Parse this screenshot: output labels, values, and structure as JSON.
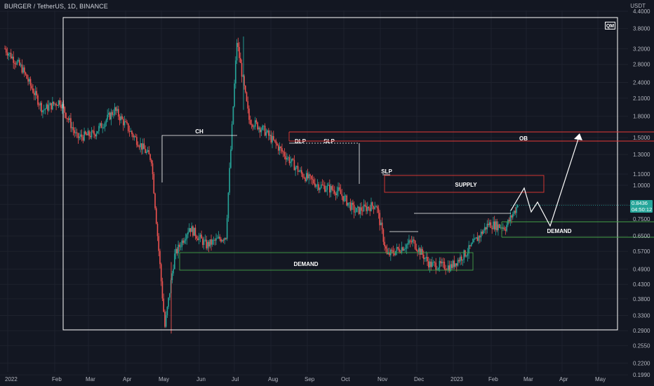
{
  "header": {
    "title": "BURGER / TetherUS, 1D, BINANCE",
    "quote_unit": "USDT"
  },
  "logo": {
    "text": "QM"
  },
  "price_tag": {
    "value": "0.8436",
    "countdown": "04:50:12"
  },
  "colors": {
    "background": "#131722",
    "up": "#26a69a",
    "down": "#ef5350",
    "white_zone": "#ffffff",
    "supply_zone": "#e53935",
    "demand_zone": "#43a047",
    "axis_text": "#b2b5be"
  },
  "chart_data": {
    "type": "candlestick",
    "title": "BURGER / TetherUS, 1D, BINANCE",
    "y_scale": "log",
    "y_ticks": [
      "4.4000",
      "3.8000",
      "3.2000",
      "2.8000",
      "2.4000",
      "2.1000",
      "1.8000",
      "1.5000",
      "1.3000",
      "1.1000",
      "1.0000",
      "0.8500",
      "0.7500",
      "0.6500",
      "0.5700",
      "0.4900",
      "0.4300",
      "0.3800",
      "0.3300",
      "0.2900",
      "0.2550",
      "0.2200",
      "0.1990"
    ],
    "x_ticks": [
      "2022",
      "Feb",
      "Mar",
      "Apr",
      "May",
      "Jun",
      "Jul",
      "Aug",
      "Sep",
      "Oct",
      "Nov",
      "Dec",
      "2023",
      "Feb",
      "Mar",
      "Apr",
      "May"
    ],
    "grid": true,
    "last_price": 0.8436,
    "ohlc_approx": [
      {
        "date": "2022-01-01",
        "close": 3.2
      },
      {
        "date": "2022-01-15",
        "close": 2.7
      },
      {
        "date": "2022-02-01",
        "close": 1.9
      },
      {
        "date": "2022-02-15",
        "close": 2.05
      },
      {
        "date": "2022-03-01",
        "close": 1.5
      },
      {
        "date": "2022-03-15",
        "close": 1.55
      },
      {
        "date": "2022-04-01",
        "close": 1.9
      },
      {
        "date": "2022-04-15",
        "close": 1.55
      },
      {
        "date": "2022-05-01",
        "close": 1.25
      },
      {
        "date": "2022-05-12",
        "close": 0.3
      },
      {
        "date": "2022-05-20",
        "close": 0.55
      },
      {
        "date": "2022-06-01",
        "close": 0.7
      },
      {
        "date": "2022-06-15",
        "close": 0.6
      },
      {
        "date": "2022-07-01",
        "close": 0.65
      },
      {
        "date": "2022-07-10",
        "close": 3.4
      },
      {
        "date": "2022-07-20",
        "close": 1.75
      },
      {
        "date": "2022-08-01",
        "close": 1.6
      },
      {
        "date": "2022-08-15",
        "close": 1.35
      },
      {
        "date": "2022-09-01",
        "close": 1.1
      },
      {
        "date": "2022-09-15",
        "close": 1.0
      },
      {
        "date": "2022-10-01",
        "close": 0.95
      },
      {
        "date": "2022-10-15",
        "close": 0.8
      },
      {
        "date": "2022-11-01",
        "close": 0.85
      },
      {
        "date": "2022-11-10",
        "close": 0.55
      },
      {
        "date": "2022-12-01",
        "close": 0.62
      },
      {
        "date": "2022-12-15",
        "close": 0.51
      },
      {
        "date": "2023-01-01",
        "close": 0.5
      },
      {
        "date": "2023-01-15",
        "close": 0.57
      },
      {
        "date": "2023-02-01",
        "close": 0.72
      },
      {
        "date": "2023-02-15",
        "close": 0.7
      },
      {
        "date": "2023-02-25",
        "close": 0.8436
      }
    ],
    "annotations": [
      {
        "label": "CH",
        "type": "line"
      },
      {
        "label": "DLP",
        "type": "line"
      },
      {
        "label": "SLP",
        "type": "line"
      },
      {
        "label": "SLP",
        "type": "line"
      },
      {
        "label": "SUPPLY",
        "type": "zone"
      },
      {
        "label": "OB",
        "type": "zone"
      },
      {
        "label": "DEMAND",
        "type": "zone"
      },
      {
        "label": "DEMAND",
        "type": "zone"
      }
    ]
  }
}
